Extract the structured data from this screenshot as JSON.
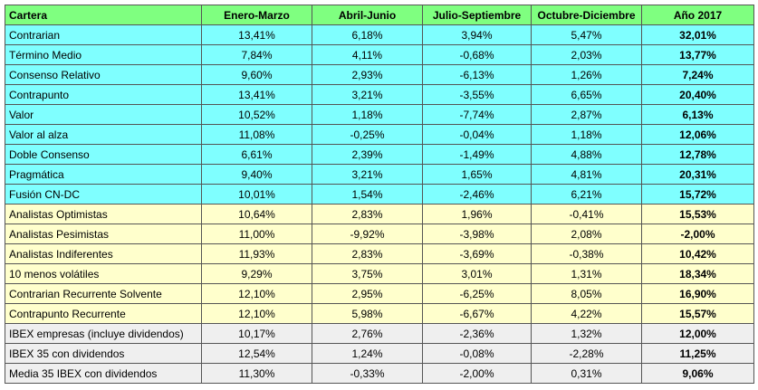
{
  "table": {
    "header": [
      "Cartera",
      "Enero-Marzo",
      "Abril-Junio",
      "Julio-Septiembre",
      "Octubre-Diciembre",
      "Año 2017"
    ],
    "rows": [
      [
        "Contrarian",
        "13,41%",
        "6,18%",
        "3,94%",
        "5,47%",
        "32,01%"
      ],
      [
        "Término Medio",
        "7,84%",
        "4,11%",
        "-0,68%",
        "2,03%",
        "13,77%"
      ],
      [
        "Consenso Relativo",
        "9,60%",
        "2,93%",
        "-6,13%",
        "1,26%",
        "7,24%"
      ],
      [
        "Contrapunto",
        "13,41%",
        "3,21%",
        "-3,55%",
        "6,65%",
        "20,40%"
      ],
      [
        "Valor",
        "10,52%",
        "1,18%",
        "-7,74%",
        "2,87%",
        "6,13%"
      ],
      [
        "Valor al alza",
        "11,08%",
        "-0,25%",
        "-0,04%",
        "1,18%",
        "12,06%"
      ],
      [
        "Doble Consenso",
        "6,61%",
        "2,39%",
        "-1,49%",
        "4,88%",
        "12,78%"
      ],
      [
        "Pragmática",
        "9,40%",
        "3,21%",
        "1,65%",
        "4,81%",
        "20,31%"
      ],
      [
        "Fusión CN-DC",
        "10,01%",
        "1,54%",
        "-2,46%",
        "6,21%",
        "15,72%"
      ],
      [
        "Analistas Optimistas",
        "10,64%",
        "2,83%",
        "1,96%",
        "-0,41%",
        "15,53%"
      ],
      [
        "Analistas Pesimistas",
        "11,00%",
        "-9,92%",
        "-3,98%",
        "2,08%",
        "-2,00%"
      ],
      [
        "Analistas Indiferentes",
        "11,93%",
        "2,83%",
        "-3,69%",
        "-0,38%",
        "10,42%"
      ],
      [
        "10 menos volátiles",
        "9,29%",
        "3,75%",
        "3,01%",
        "1,31%",
        "18,34%"
      ],
      [
        "Contrarian Recurrente Solvente",
        "12,10%",
        "2,95%",
        "-6,25%",
        "8,05%",
        "16,90%"
      ],
      [
        "Contrapunto Recurrente",
        "12,10%",
        "5,98%",
        "-6,67%",
        "4,22%",
        "15,57%"
      ],
      [
        "IBEX empresas (incluye dividendos)",
        "10,17%",
        "2,76%",
        "-2,36%",
        "1,32%",
        "12,00%"
      ],
      [
        "IBEX 35 con dividendos",
        "12,54%",
        "1,24%",
        "-0,08%",
        "-2,28%",
        "11,25%"
      ],
      [
        "Media 35 IBEX con dividendos",
        "11,30%",
        "-0,33%",
        "-2,00%",
        "0,31%",
        "9,06%"
      ]
    ]
  }
}
